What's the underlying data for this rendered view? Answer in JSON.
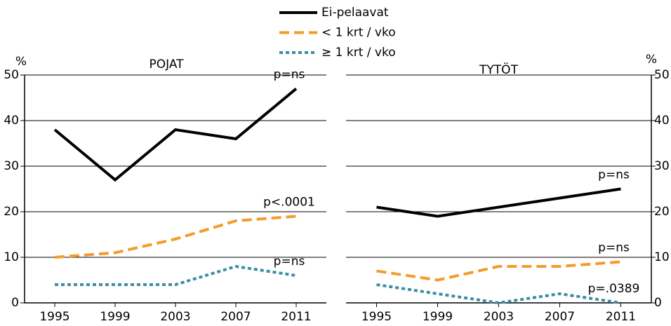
{
  "chart_data": [
    {
      "type": "line",
      "title": "POJAT",
      "ylabel": "%",
      "yaxis_side": "left",
      "categories": [
        "1995",
        "1999",
        "2003",
        "2007",
        "2011"
      ],
      "ylim": [
        0,
        50
      ],
      "yticks": [
        0,
        10,
        20,
        30,
        40,
        50
      ],
      "grid": true,
      "series": [
        {
          "name": "Ei-pelaavat",
          "color": "#000000",
          "dash": "solid",
          "values": [
            38,
            27,
            38,
            36,
            47
          ],
          "annotation": "p=ns"
        },
        {
          "name": "< 1 krt / vko",
          "color": "#f39c2b",
          "dash": "dashed",
          "values": [
            10,
            11,
            14,
            18,
            19
          ],
          "annotation": "p<.0001"
        },
        {
          "name": "≥ 1 krt / vko",
          "color": "#3a8ea5",
          "dash": "dotted",
          "values": [
            4,
            4,
            4,
            8,
            6
          ],
          "annotation": "p=ns"
        }
      ]
    },
    {
      "type": "line",
      "title": "TYTÖT",
      "ylabel": "%",
      "yaxis_side": "right",
      "categories": [
        "1995",
        "1999",
        "2003",
        "2007",
        "2011"
      ],
      "ylim": [
        0,
        50
      ],
      "yticks": [
        0,
        10,
        20,
        30,
        40,
        50
      ],
      "grid": true,
      "series": [
        {
          "color": "#000000",
          "dash": "solid",
          "values": [
            21,
            19,
            21,
            23,
            25
          ],
          "annotation": "p=ns"
        },
        {
          "color": "#f39c2b",
          "dash": "dashed",
          "values": [
            7,
            5,
            8,
            8,
            9
          ],
          "annotation": "p=ns"
        },
        {
          "color": "#3a8ea5",
          "dash": "dotted",
          "values": [
            4,
            2,
            0,
            2,
            0
          ],
          "annotation": "p=.0389"
        }
      ]
    }
  ]
}
